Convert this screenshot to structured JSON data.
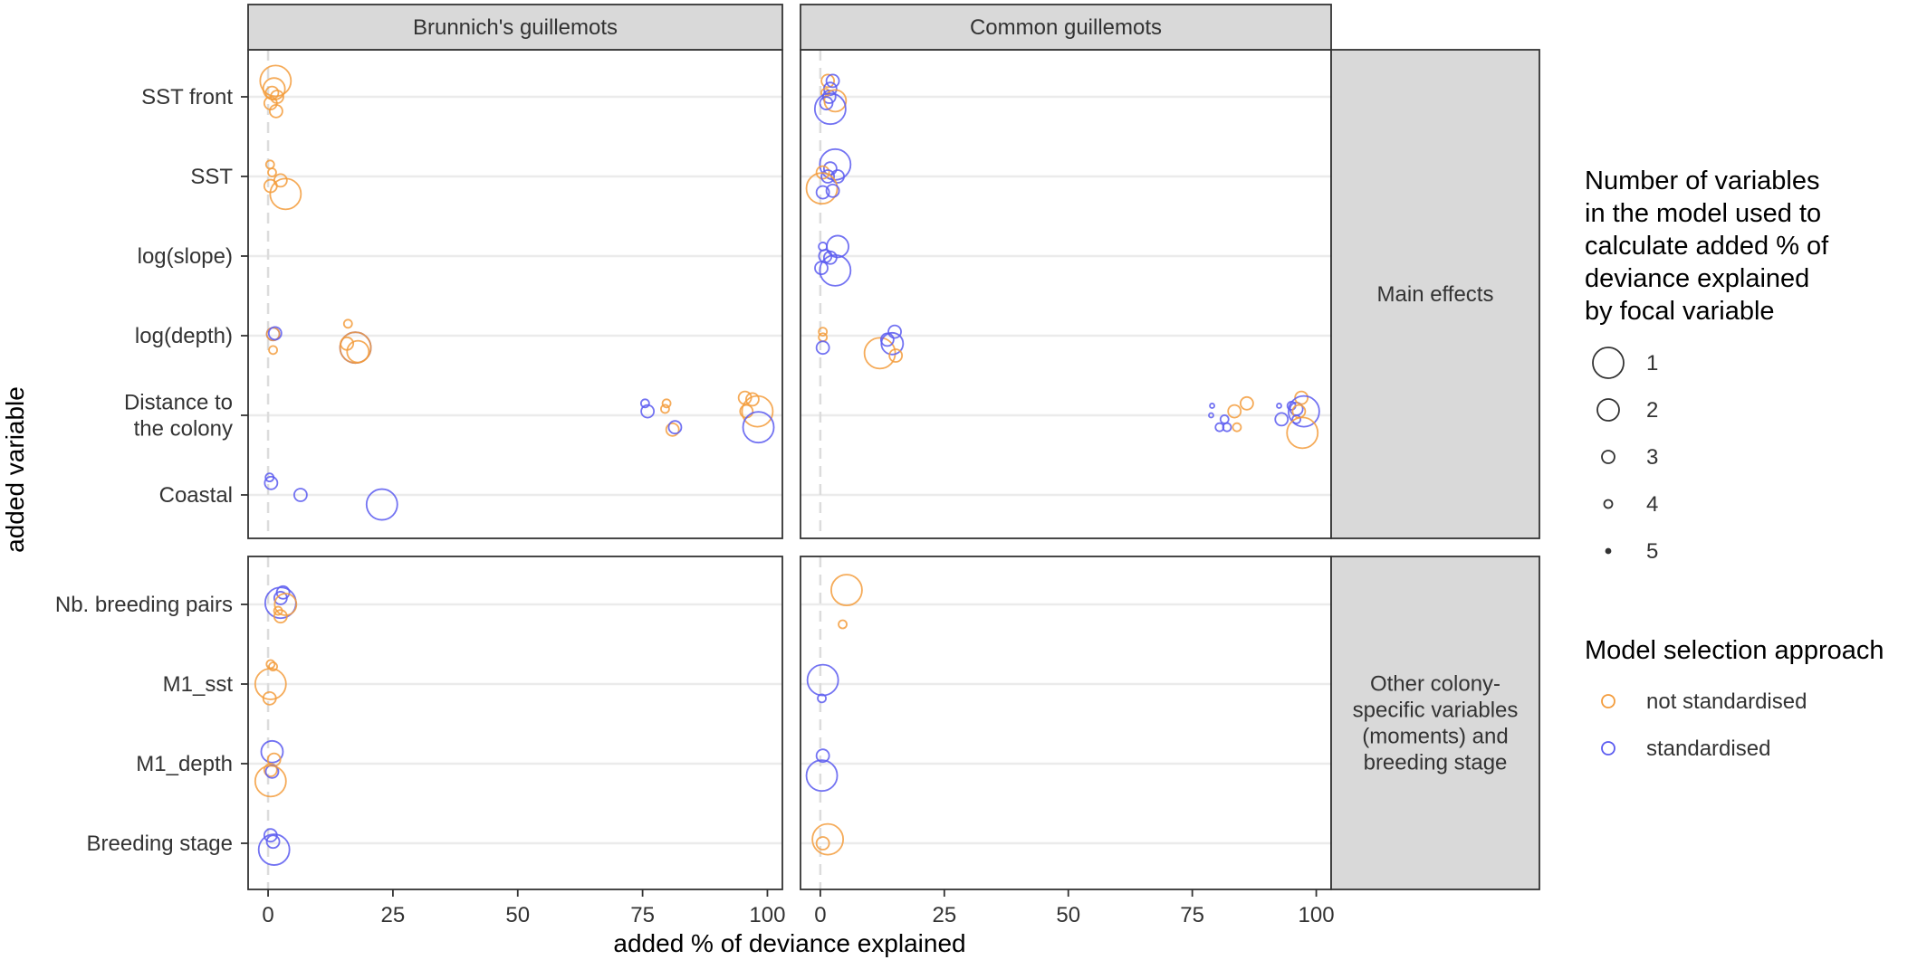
{
  "chart_data": {
    "type": "scatter",
    "facet_columns": [
      "Brunnich's guillemots",
      "Common guillemots"
    ],
    "facet_rows": [
      {
        "label_lines": [
          "Main effects"
        ],
        "categories": [
          {
            "lines": [
              "SST front"
            ]
          },
          {
            "lines": [
              "SST"
            ]
          },
          {
            "lines": [
              "log(slope)"
            ]
          },
          {
            "lines": [
              "log(depth)"
            ]
          },
          {
            "lines": [
              "Distance to",
              "the colony"
            ]
          },
          {
            "lines": [
              "Coastal"
            ]
          }
        ]
      },
      {
        "label_lines": [
          "Other colony-",
          "specific variables",
          "(moments) and",
          "breeding stage"
        ],
        "categories": [
          {
            "lines": [
              "Nb. breeding pairs"
            ]
          },
          {
            "lines": [
              "M1_sst"
            ]
          },
          {
            "lines": [
              "M1_depth"
            ]
          },
          {
            "lines": [
              "Breeding stage"
            ]
          }
        ]
      }
    ],
    "xlabel": "added % of deviance explained",
    "ylabel": "added variable",
    "xlim": [
      -4,
      103
    ],
    "xticks": [
      0,
      25,
      50,
      75,
      100
    ],
    "reference_line_x": 0,
    "grid": "horizontal",
    "legend_position": "right",
    "size_legend": {
      "title_lines": [
        "Number of variables",
        "in the model used to",
        "calculate added % of",
        "deviance explained",
        "by focal variable"
      ],
      "levels": [
        1,
        2,
        3,
        4,
        5
      ]
    },
    "color_legend": {
      "title": "Model selection approach",
      "entries": [
        {
          "label": "not standardised",
          "color": "#F39C3C"
        },
        {
          "label": "standardised",
          "color": "#5B5BF0"
        }
      ]
    },
    "points": [
      {
        "facet": 0,
        "row": 0,
        "var": 0,
        "x": 1.5,
        "dy": -0.2,
        "size": 1,
        "color": 0
      },
      {
        "facet": 0,
        "row": 0,
        "var": 0,
        "x": 1.2,
        "dy": -0.1,
        "size": 2,
        "color": 0
      },
      {
        "facet": 0,
        "row": 0,
        "var": 0,
        "x": 0.8,
        "dy": -0.05,
        "size": 3,
        "color": 0
      },
      {
        "facet": 0,
        "row": 0,
        "var": 0,
        "x": 1.8,
        "dy": 0.0,
        "size": 3,
        "color": 0
      },
      {
        "facet": 0,
        "row": 0,
        "var": 0,
        "x": 0.5,
        "dy": 0.08,
        "size": 3,
        "color": 0
      },
      {
        "facet": 0,
        "row": 0,
        "var": 0,
        "x": 1.6,
        "dy": 0.18,
        "size": 3,
        "color": 0
      },
      {
        "facet": 0,
        "row": 0,
        "var": 1,
        "x": 0.4,
        "dy": -0.15,
        "size": 4,
        "color": 0
      },
      {
        "facet": 0,
        "row": 0,
        "var": 1,
        "x": 0.8,
        "dy": -0.05,
        "size": 4,
        "color": 0
      },
      {
        "facet": 0,
        "row": 0,
        "var": 1,
        "x": 2.5,
        "dy": 0.05,
        "size": 3,
        "color": 0
      },
      {
        "facet": 0,
        "row": 0,
        "var": 1,
        "x": 0.5,
        "dy": 0.12,
        "size": 3,
        "color": 0
      },
      {
        "facet": 0,
        "row": 0,
        "var": 1,
        "x": 3.5,
        "dy": 0.22,
        "size": 1,
        "color": 0
      },
      {
        "facet": 0,
        "row": 0,
        "var": 3,
        "x": 1.0,
        "dy": -0.02,
        "size": 3,
        "color": 1
      },
      {
        "facet": 0,
        "row": 0,
        "var": 3,
        "x": 1.0,
        "dy": -0.02,
        "size": 3,
        "color": 0
      },
      {
        "facet": 0,
        "row": 0,
        "var": 3,
        "x": 1.4,
        "dy": -0.03,
        "size": 3,
        "color": 1
      },
      {
        "facet": 0,
        "row": 0,
        "var": 3,
        "x": 1.0,
        "dy": 0.18,
        "size": 4,
        "color": 0
      },
      {
        "facet": 0,
        "row": 0,
        "var": 3,
        "x": 16.0,
        "dy": -0.15,
        "size": 4,
        "color": 0
      },
      {
        "facet": 0,
        "row": 0,
        "var": 3,
        "x": 17.5,
        "dy": 0.15,
        "size": 1,
        "color": 1
      },
      {
        "facet": 0,
        "row": 0,
        "var": 3,
        "x": 17.5,
        "dy": 0.15,
        "size": 1,
        "color": 0
      },
      {
        "facet": 0,
        "row": 0,
        "var": 3,
        "x": 15.8,
        "dy": 0.1,
        "size": 3,
        "color": 0
      },
      {
        "facet": 0,
        "row": 0,
        "var": 3,
        "x": 18.0,
        "dy": 0.2,
        "size": 2,
        "color": 0
      },
      {
        "facet": 0,
        "row": 0,
        "var": 4,
        "x": 75.5,
        "dy": -0.15,
        "size": 4,
        "color": 1
      },
      {
        "facet": 0,
        "row": 0,
        "var": 4,
        "x": 76.0,
        "dy": -0.05,
        "size": 3,
        "color": 1
      },
      {
        "facet": 0,
        "row": 0,
        "var": 4,
        "x": 79.8,
        "dy": -0.15,
        "size": 4,
        "color": 0
      },
      {
        "facet": 0,
        "row": 0,
        "var": 4,
        "x": 79.5,
        "dy": -0.08,
        "size": 4,
        "color": 0
      },
      {
        "facet": 0,
        "row": 0,
        "var": 4,
        "x": 81.0,
        "dy": 0.18,
        "size": 3,
        "color": 0
      },
      {
        "facet": 0,
        "row": 0,
        "var": 4,
        "x": 81.5,
        "dy": 0.15,
        "size": 3,
        "color": 1
      },
      {
        "facet": 0,
        "row": 0,
        "var": 4,
        "x": 95.5,
        "dy": -0.22,
        "size": 3,
        "color": 0
      },
      {
        "facet": 0,
        "row": 0,
        "var": 4,
        "x": 97.0,
        "dy": -0.2,
        "size": 3,
        "color": 0
      },
      {
        "facet": 0,
        "row": 0,
        "var": 4,
        "x": 95.8,
        "dy": -0.05,
        "size": 3,
        "color": 0
      },
      {
        "facet": 0,
        "row": 0,
        "var": 4,
        "x": 98.0,
        "dy": -0.05,
        "size": 1,
        "color": 0
      },
      {
        "facet": 0,
        "row": 0,
        "var": 4,
        "x": 98.2,
        "dy": 0.15,
        "size": 1,
        "color": 1
      },
      {
        "facet": 0,
        "row": 0,
        "var": 5,
        "x": 0.3,
        "dy": -0.22,
        "size": 4,
        "color": 1
      },
      {
        "facet": 0,
        "row": 0,
        "var": 5,
        "x": 0.6,
        "dy": -0.15,
        "size": 3,
        "color": 1
      },
      {
        "facet": 0,
        "row": 0,
        "var": 5,
        "x": 6.5,
        "dy": 0.0,
        "size": 3,
        "color": 1
      },
      {
        "facet": 0,
        "row": 0,
        "var": 5,
        "x": 22.8,
        "dy": 0.12,
        "size": 1,
        "color": 1
      },
      {
        "facet": 0,
        "row": 1,
        "var": 0,
        "x": 3.0,
        "dy": -0.15,
        "size": 3,
        "color": 1
      },
      {
        "facet": 0,
        "row": 1,
        "var": 0,
        "x": 2.5,
        "dy": -0.08,
        "size": 3,
        "color": 1
      },
      {
        "facet": 0,
        "row": 1,
        "var": 0,
        "x": 2.5,
        "dy": -0.02,
        "size": 1,
        "color": 1
      },
      {
        "facet": 0,
        "row": 1,
        "var": 0,
        "x": 3.5,
        "dy": 0.0,
        "size": 2,
        "color": 0
      },
      {
        "facet": 0,
        "row": 1,
        "var": 0,
        "x": 2.0,
        "dy": 0.08,
        "size": 4,
        "color": 0
      },
      {
        "facet": 0,
        "row": 1,
        "var": 0,
        "x": 2.5,
        "dy": 0.15,
        "size": 3,
        "color": 0
      },
      {
        "facet": 0,
        "row": 1,
        "var": 1,
        "x": 0.5,
        "dy": -0.25,
        "size": 4,
        "color": 0
      },
      {
        "facet": 0,
        "row": 1,
        "var": 1,
        "x": 1.0,
        "dy": -0.22,
        "size": 4,
        "color": 0
      },
      {
        "facet": 0,
        "row": 1,
        "var": 1,
        "x": 0.5,
        "dy": 0.0,
        "size": 1,
        "color": 0
      },
      {
        "facet": 0,
        "row": 1,
        "var": 1,
        "x": 0.3,
        "dy": 0.18,
        "size": 3,
        "color": 0
      },
      {
        "facet": 0,
        "row": 1,
        "var": 2,
        "x": 0.8,
        "dy": -0.15,
        "size": 2,
        "color": 1
      },
      {
        "facet": 0,
        "row": 1,
        "var": 2,
        "x": 1.2,
        "dy": -0.05,
        "size": 3,
        "color": 0
      },
      {
        "facet": 0,
        "row": 1,
        "var": 2,
        "x": 0.5,
        "dy": 0.08,
        "size": 3,
        "color": 0
      },
      {
        "facet": 0,
        "row": 1,
        "var": 2,
        "x": 0.8,
        "dy": 0.1,
        "size": 3,
        "color": 1
      },
      {
        "facet": 0,
        "row": 1,
        "var": 2,
        "x": 0.5,
        "dy": 0.22,
        "size": 1,
        "color": 0
      },
      {
        "facet": 0,
        "row": 1,
        "var": 3,
        "x": 0.5,
        "dy": -0.1,
        "size": 3,
        "color": 1
      },
      {
        "facet": 0,
        "row": 1,
        "var": 3,
        "x": 1.0,
        "dy": -0.02,
        "size": 3,
        "color": 1
      },
      {
        "facet": 0,
        "row": 1,
        "var": 3,
        "x": 1.2,
        "dy": 0.08,
        "size": 1,
        "color": 1
      },
      {
        "facet": 1,
        "row": 0,
        "var": 0,
        "x": 1.5,
        "dy": -0.2,
        "size": 3,
        "color": 0
      },
      {
        "facet": 1,
        "row": 0,
        "var": 0,
        "x": 2.5,
        "dy": -0.2,
        "size": 3,
        "color": 1
      },
      {
        "facet": 1,
        "row": 0,
        "var": 0,
        "x": 2.0,
        "dy": -0.1,
        "size": 3,
        "color": 1
      },
      {
        "facet": 1,
        "row": 0,
        "var": 0,
        "x": 1.0,
        "dy": -0.05,
        "size": 4,
        "color": 0
      },
      {
        "facet": 1,
        "row": 0,
        "var": 0,
        "x": 1.8,
        "dy": 0.0,
        "size": 3,
        "color": 1
      },
      {
        "facet": 1,
        "row": 0,
        "var": 0,
        "x": 3.0,
        "dy": 0.05,
        "size": 2,
        "color": 0
      },
      {
        "facet": 1,
        "row": 0,
        "var": 0,
        "x": 1.2,
        "dy": 0.08,
        "size": 3,
        "color": 1
      },
      {
        "facet": 1,
        "row": 0,
        "var": 0,
        "x": 2.0,
        "dy": 0.15,
        "size": 1,
        "color": 1
      },
      {
        "facet": 1,
        "row": 0,
        "var": 1,
        "x": 3.0,
        "dy": -0.15,
        "size": 1,
        "color": 1
      },
      {
        "facet": 1,
        "row": 0,
        "var": 1,
        "x": 2.0,
        "dy": -0.1,
        "size": 3,
        "color": 1
      },
      {
        "facet": 1,
        "row": 0,
        "var": 1,
        "x": 0.5,
        "dy": -0.05,
        "size": 3,
        "color": 0
      },
      {
        "facet": 1,
        "row": 0,
        "var": 1,
        "x": 1.5,
        "dy": 0.0,
        "size": 3,
        "color": 1
      },
      {
        "facet": 1,
        "row": 0,
        "var": 1,
        "x": 3.5,
        "dy": 0.0,
        "size": 3,
        "color": 1
      },
      {
        "facet": 1,
        "row": 0,
        "var": 1,
        "x": 0.3,
        "dy": 0.15,
        "size": 1,
        "color": 0
      },
      {
        "facet": 1,
        "row": 0,
        "var": 1,
        "x": 2.5,
        "dy": 0.18,
        "size": 3,
        "color": 1
      },
      {
        "facet": 1,
        "row": 0,
        "var": 1,
        "x": 0.5,
        "dy": 0.2,
        "size": 3,
        "color": 1
      },
      {
        "facet": 1,
        "row": 0,
        "var": 2,
        "x": 3.5,
        "dy": -0.12,
        "size": 2,
        "color": 1
      },
      {
        "facet": 1,
        "row": 0,
        "var": 2,
        "x": 0.5,
        "dy": -0.12,
        "size": 4,
        "color": 1
      },
      {
        "facet": 1,
        "row": 0,
        "var": 2,
        "x": 1.0,
        "dy": 0.0,
        "size": 3,
        "color": 1
      },
      {
        "facet": 1,
        "row": 0,
        "var": 2,
        "x": 2.0,
        "dy": 0.02,
        "size": 3,
        "color": 1
      },
      {
        "facet": 1,
        "row": 0,
        "var": 2,
        "x": 0.2,
        "dy": 0.15,
        "size": 3,
        "color": 1
      },
      {
        "facet": 1,
        "row": 0,
        "var": 2,
        "x": 3.0,
        "dy": 0.18,
        "size": 1,
        "color": 1
      },
      {
        "facet": 1,
        "row": 0,
        "var": 3,
        "x": 0.5,
        "dy": -0.05,
        "size": 4,
        "color": 0
      },
      {
        "facet": 1,
        "row": 0,
        "var": 3,
        "x": 0.5,
        "dy": 0.02,
        "size": 4,
        "color": 0
      },
      {
        "facet": 1,
        "row": 0,
        "var": 3,
        "x": 0.5,
        "dy": 0.15,
        "size": 3,
        "color": 1
      },
      {
        "facet": 1,
        "row": 0,
        "var": 3,
        "x": 12.0,
        "dy": 0.22,
        "size": 1,
        "color": 0
      },
      {
        "facet": 1,
        "row": 0,
        "var": 3,
        "x": 13.5,
        "dy": 0.05,
        "size": 3,
        "color": 1
      },
      {
        "facet": 1,
        "row": 0,
        "var": 3,
        "x": 15.0,
        "dy": -0.05,
        "size": 3,
        "color": 1
      },
      {
        "facet": 1,
        "row": 0,
        "var": 3,
        "x": 14.5,
        "dy": 0.1,
        "size": 2,
        "color": 1
      },
      {
        "facet": 1,
        "row": 0,
        "var": 3,
        "x": 15.2,
        "dy": 0.25,
        "size": 3,
        "color": 0
      },
      {
        "facet": 1,
        "row": 0,
        "var": 4,
        "x": 79.0,
        "dy": -0.12,
        "size": 5,
        "color": 1
      },
      {
        "facet": 1,
        "row": 0,
        "var": 4,
        "x": 78.8,
        "dy": 0.0,
        "size": 5,
        "color": 1
      },
      {
        "facet": 1,
        "row": 0,
        "var": 4,
        "x": 81.5,
        "dy": 0.05,
        "size": 4,
        "color": 1
      },
      {
        "facet": 1,
        "row": 0,
        "var": 4,
        "x": 80.5,
        "dy": 0.15,
        "size": 4,
        "color": 1
      },
      {
        "facet": 1,
        "row": 0,
        "var": 4,
        "x": 82.0,
        "dy": 0.15,
        "size": 4,
        "color": 1
      },
      {
        "facet": 1,
        "row": 0,
        "var": 4,
        "x": 83.5,
        "dy": -0.05,
        "size": 3,
        "color": 0
      },
      {
        "facet": 1,
        "row": 0,
        "var": 4,
        "x": 84.0,
        "dy": 0.15,
        "size": 4,
        "color": 0
      },
      {
        "facet": 1,
        "row": 0,
        "var": 4,
        "x": 86.0,
        "dy": -0.15,
        "size": 3,
        "color": 0
      },
      {
        "facet": 1,
        "row": 0,
        "var": 4,
        "x": 92.5,
        "dy": -0.12,
        "size": 5,
        "color": 1
      },
      {
        "facet": 1,
        "row": 0,
        "var": 4,
        "x": 93.0,
        "dy": 0.05,
        "size": 3,
        "color": 1
      },
      {
        "facet": 1,
        "row": 0,
        "var": 4,
        "x": 95.0,
        "dy": -0.12,
        "size": 4,
        "color": 1
      },
      {
        "facet": 1,
        "row": 0,
        "var": 4,
        "x": 96.0,
        "dy": -0.08,
        "size": 3,
        "color": 1
      },
      {
        "facet": 1,
        "row": 0,
        "var": 4,
        "x": 96.5,
        "dy": -0.05,
        "size": 3,
        "color": 0
      },
      {
        "facet": 1,
        "row": 0,
        "var": 4,
        "x": 97.0,
        "dy": -0.22,
        "size": 3,
        "color": 0
      },
      {
        "facet": 1,
        "row": 0,
        "var": 4,
        "x": 96.0,
        "dy": 0.05,
        "size": 4,
        "color": 1
      },
      {
        "facet": 1,
        "row": 0,
        "var": 4,
        "x": 97.5,
        "dy": -0.05,
        "size": 1,
        "color": 1
      },
      {
        "facet": 1,
        "row": 0,
        "var": 4,
        "x": 97.2,
        "dy": 0.22,
        "size": 1,
        "color": 0
      },
      {
        "facet": 1,
        "row": 1,
        "var": 0,
        "x": 5.3,
        "dy": -0.18,
        "size": 1,
        "color": 0
      },
      {
        "facet": 1,
        "row": 1,
        "var": 0,
        "x": 4.5,
        "dy": 0.25,
        "size": 4,
        "color": 0
      },
      {
        "facet": 1,
        "row": 1,
        "var": 1,
        "x": 0.5,
        "dy": -0.05,
        "size": 1,
        "color": 1
      },
      {
        "facet": 1,
        "row": 1,
        "var": 1,
        "x": 0.3,
        "dy": 0.18,
        "size": 4,
        "color": 1
      },
      {
        "facet": 1,
        "row": 1,
        "var": 2,
        "x": 0.5,
        "dy": -0.1,
        "size": 3,
        "color": 1
      },
      {
        "facet": 1,
        "row": 1,
        "var": 2,
        "x": 0.3,
        "dy": 0.15,
        "size": 1,
        "color": 1
      },
      {
        "facet": 1,
        "row": 1,
        "var": 3,
        "x": 1.5,
        "dy": -0.05,
        "size": 1,
        "color": 0
      },
      {
        "facet": 1,
        "row": 1,
        "var": 3,
        "x": 0.5,
        "dy": 0.0,
        "size": 3,
        "color": 0
      }
    ]
  }
}
